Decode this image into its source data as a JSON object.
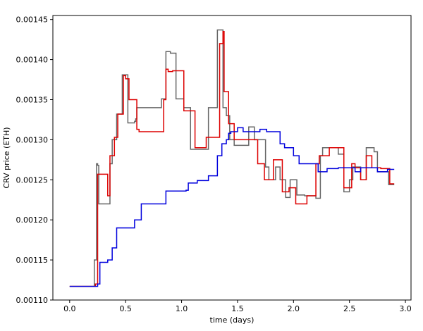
{
  "chart_data": {
    "type": "line",
    "title": "",
    "xlabel": "time (days)",
    "ylabel": "CRV price (ETH)",
    "xlim": [
      -0.15,
      3.05
    ],
    "ylim": [
      0.0011,
      0.001455
    ],
    "xticks": [
      0.0,
      0.5,
      1.0,
      1.5,
      2.0,
      2.5,
      3.0
    ],
    "xtick_labels": [
      "0.0",
      "0.5",
      "1.0",
      "1.5",
      "2.0",
      "2.5",
      "3.0"
    ],
    "yticks": [
      0.0011,
      0.00115,
      0.0012,
      0.00125,
      0.0013,
      0.00135,
      0.0014,
      0.00145
    ],
    "ytick_labels": [
      "0.00110",
      "0.00115",
      "0.00120",
      "0.00125",
      "0.00130",
      "0.00135",
      "0.00140",
      "0.00145"
    ],
    "grid": false,
    "legend": "none",
    "series": [
      {
        "color": "#666666",
        "step": true,
        "x": [
          0.0,
          0.22,
          0.24,
          0.25,
          0.26,
          0.28,
          0.36,
          0.38,
          0.42,
          0.47,
          0.49,
          0.52,
          0.58,
          0.59,
          0.6,
          0.65,
          0.82,
          0.86,
          0.87,
          0.9,
          0.95,
          1.02,
          1.08,
          1.24,
          1.32,
          1.34,
          1.37,
          1.4,
          1.43,
          1.47,
          1.52,
          1.6,
          1.65,
          1.75,
          1.78,
          1.84,
          1.88,
          1.93,
          1.97,
          2.03,
          2.1,
          2.2,
          2.24,
          2.26,
          2.38,
          2.4,
          2.45,
          2.5,
          2.53,
          2.6,
          2.65,
          2.7,
          2.72,
          2.75,
          2.85,
          2.9
        ],
        "y": [
          0.001117,
          0.00115,
          0.00127,
          0.001268,
          0.00122,
          0.00122,
          0.00127,
          0.0013,
          0.001332,
          0.001381,
          0.001381,
          0.001321,
          0.001323,
          0.001326,
          0.00134,
          0.00134,
          0.001351,
          0.00141,
          0.00141,
          0.001408,
          0.001351,
          0.00134,
          0.001288,
          0.00134,
          0.001437,
          0.001437,
          0.00134,
          0.00133,
          0.0013,
          0.001293,
          0.001293,
          0.001316,
          0.0013,
          0.001266,
          0.00125,
          0.001266,
          0.00125,
          0.001228,
          0.00125,
          0.001231,
          0.00123,
          0.001227,
          0.00128,
          0.00129,
          0.00129,
          0.001282,
          0.001235,
          0.00125,
          0.001266,
          0.00125,
          0.00129,
          0.00129,
          0.001285,
          0.00126,
          0.001244,
          0.001244
        ]
      },
      {
        "color": "#dd0000",
        "step": true,
        "x": [
          0.0,
          0.23,
          0.25,
          0.28,
          0.34,
          0.36,
          0.4,
          0.43,
          0.48,
          0.5,
          0.53,
          0.6,
          0.62,
          0.66,
          0.84,
          0.86,
          0.88,
          0.92,
          1.02,
          1.12,
          1.22,
          1.34,
          1.37,
          1.38,
          1.42,
          1.47,
          1.52,
          1.6,
          1.68,
          1.74,
          1.82,
          1.9,
          1.96,
          2.02,
          2.05,
          2.12,
          2.2,
          2.23,
          2.26,
          2.32,
          2.4,
          2.45,
          2.47,
          2.52,
          2.55,
          2.6,
          2.65,
          2.68,
          2.7,
          2.78,
          2.86,
          2.9
        ],
        "y": [
          0.001117,
          0.00112,
          0.001257,
          0.001257,
          0.00123,
          0.00128,
          0.001303,
          0.001332,
          0.00138,
          0.001376,
          0.00135,
          0.001313,
          0.00131,
          0.00131,
          0.00135,
          0.001388,
          0.001385,
          0.001386,
          0.001336,
          0.00129,
          0.001303,
          0.00142,
          0.001435,
          0.00136,
          0.00132,
          0.0013,
          0.0013,
          0.0013,
          0.00127,
          0.00125,
          0.001275,
          0.001235,
          0.00124,
          0.00122,
          0.00122,
          0.00123,
          0.00127,
          0.00128,
          0.00128,
          0.00129,
          0.00129,
          0.00124,
          0.00124,
          0.00127,
          0.001265,
          0.00125,
          0.00128,
          0.00128,
          0.001265,
          0.001264,
          0.001245,
          0.001245
        ]
      },
      {
        "color": "#0000dd",
        "step": true,
        "x": [
          0.0,
          0.25,
          0.27,
          0.29,
          0.34,
          0.38,
          0.42,
          0.55,
          0.58,
          0.64,
          0.86,
          1.04,
          1.06,
          1.14,
          1.24,
          1.32,
          1.36,
          1.4,
          1.42,
          1.44,
          1.47,
          1.5,
          1.55,
          1.7,
          1.76,
          1.88,
          1.92,
          2.0,
          2.05,
          2.15,
          2.22,
          2.3,
          2.4,
          2.48,
          2.55,
          2.6,
          2.7,
          2.75,
          2.84,
          2.9
        ],
        "y": [
          0.001117,
          0.00112,
          0.001147,
          0.001147,
          0.00115,
          0.001165,
          0.00119,
          0.00119,
          0.0012,
          0.00122,
          0.001236,
          0.001237,
          0.001246,
          0.001249,
          0.001255,
          0.00128,
          0.001295,
          0.0013,
          0.001308,
          0.00131,
          0.00131,
          0.001315,
          0.00131,
          0.001313,
          0.00131,
          0.001295,
          0.00129,
          0.00128,
          0.00127,
          0.00127,
          0.00126,
          0.001264,
          0.001265,
          0.001265,
          0.00126,
          0.001265,
          0.001265,
          0.00126,
          0.001263,
          0.001263
        ]
      }
    ]
  }
}
